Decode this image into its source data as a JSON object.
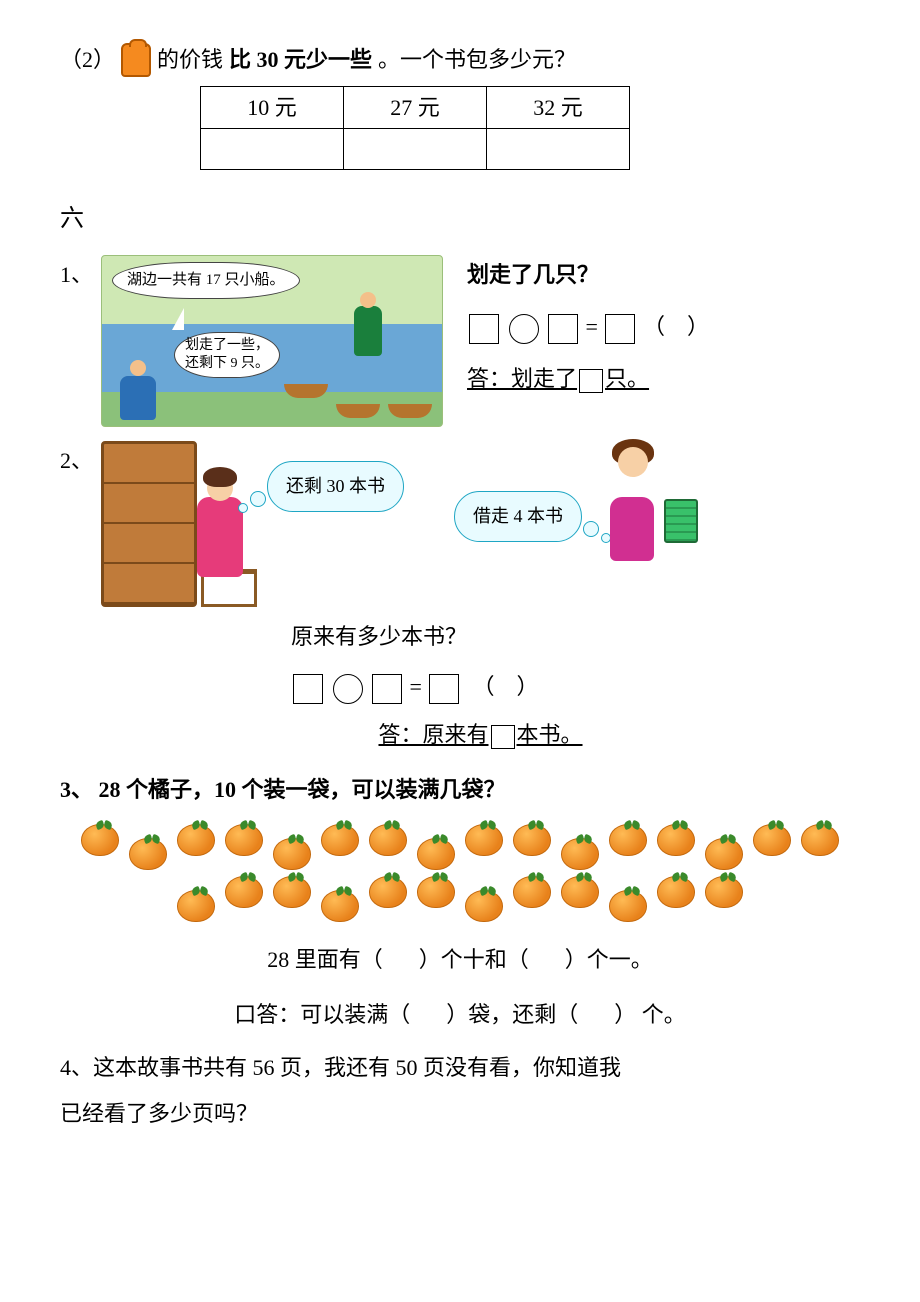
{
  "q_prefix": "（2）",
  "backpack_sentence_a": "的价钱",
  "backpack_sentence_b": "比 30 元少一些",
  "backpack_sentence_c": "。一个书包多少元？",
  "price_options": [
    "10 元",
    "27 元",
    "32 元"
  ],
  "section6": "六",
  "p1": {
    "num": "1、",
    "bubble1": "湖边一共有 17 只小船。",
    "bubble2a": "划走了一些，",
    "bubble2b": "还剩下 9 只。",
    "question": "划走了几只？",
    "eq_between": "=",
    "paren": "（　）",
    "answer_prefix": "答：划走了",
    "answer_suffix": "只。"
  },
  "p2": {
    "num": "2、",
    "cloud1": "还剩 30 本书",
    "cloud2": "借走 4 本书",
    "question": "原来有多少本书？",
    "eq_between": "=",
    "paren": "（　）",
    "answer_prefix": "答：原来有",
    "answer_suffix": "本书。"
  },
  "p3": {
    "num": "3、",
    "title": "28 个橘子，10 个装一袋，可以装满几袋？",
    "orange_count": 28,
    "line1_a": "28 里面有（",
    "line1_b": "）个十和（",
    "line1_c": "）个一。",
    "line2_a": "口答：可以装满（",
    "line2_b": "）袋，还剩（",
    "line2_c": "） 个。"
  },
  "p4": {
    "num": "4、",
    "text_a": "这本故事书共有 56 页，我还有 50 页没有看，你知道我",
    "text_b": "已经看了多少页吗？"
  },
  "colors": {
    "orange_fill": "#e8821b",
    "cloud_border": "#1fa6c4",
    "shelf": "#c07b3a"
  }
}
